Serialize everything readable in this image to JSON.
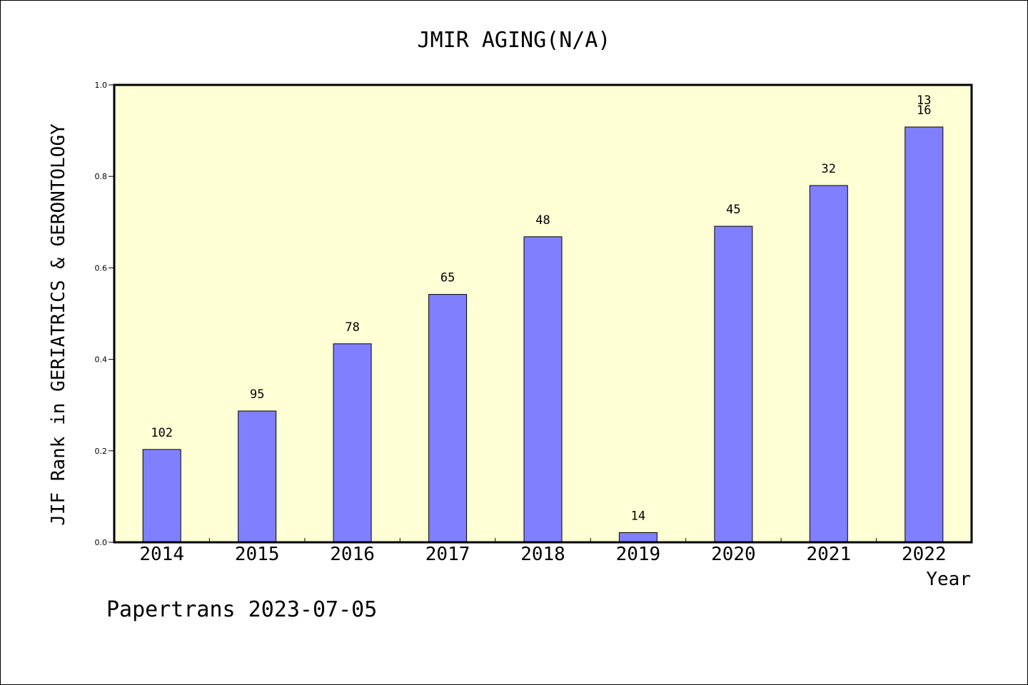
{
  "chart_data": {
    "type": "bar",
    "title": "JMIR AGING(N/A)",
    "xlabel": "Year",
    "ylabel": "JIF Rank in GERIATRICS & GERONTOLOGY",
    "ylim": [
      0,
      1.0
    ],
    "yticks": [
      "0.0",
      "0.2",
      "0.4",
      "0.6",
      "0.8",
      "1.0"
    ],
    "ytick_values": [
      0,
      0.2,
      0.4,
      0.6,
      0.8,
      1.0
    ],
    "grid": false,
    "bar_color": "#8080ff",
    "plot_background": "#ffffd5",
    "categories": [
      "2014",
      "2015",
      "2016",
      "2017",
      "2018",
      "2019",
      "2020",
      "2021",
      "2022"
    ],
    "values": [
      0.203,
      0.287,
      0.434,
      0.542,
      0.668,
      0.021,
      0.691,
      0.78,
      0.908
    ],
    "labels": [
      [
        "102"
      ],
      [
        "95"
      ],
      [
        "78"
      ],
      [
        "65"
      ],
      [
        "48"
      ],
      [
        "14"
      ],
      [
        "45"
      ],
      [
        "32"
      ],
      [
        "13",
        "16"
      ]
    ]
  },
  "footer": {
    "text": "Papertrans 2023-07-05"
  }
}
